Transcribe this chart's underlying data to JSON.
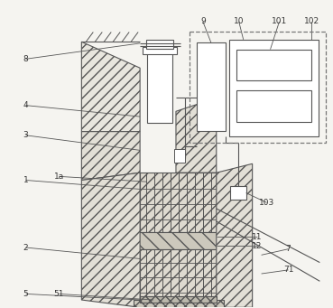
{
  "fig_width": 3.69,
  "fig_height": 3.41,
  "dpi": 100,
  "bg_color": "#f5f4f0",
  "lc": "#555555",
  "lc2": "#888888"
}
